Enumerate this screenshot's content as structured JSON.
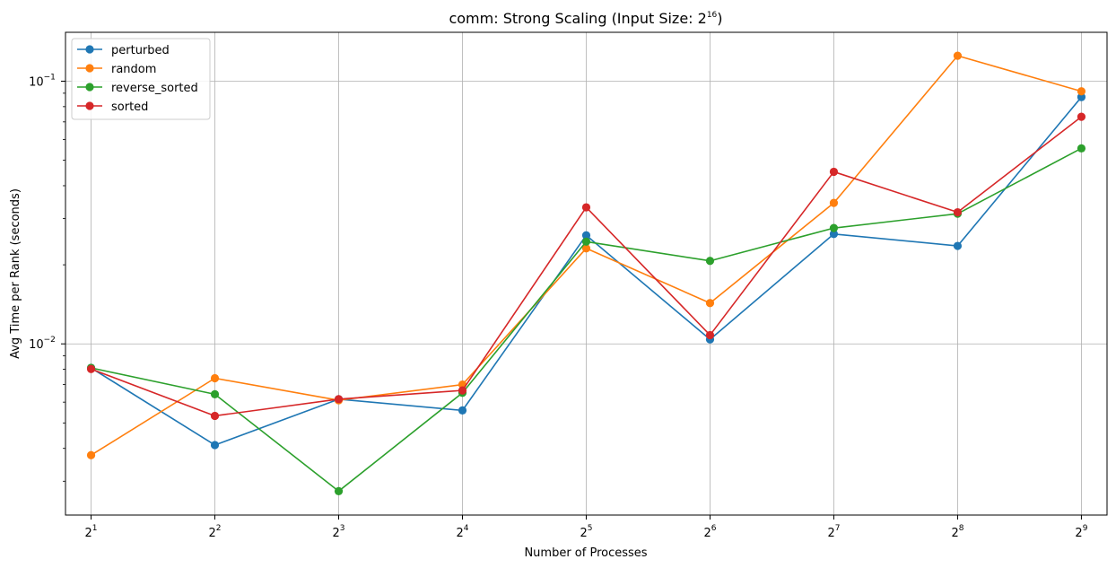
{
  "chart_data": {
    "type": "line",
    "title": "comm: Strong Scaling (Input Size: 2",
    "title_exp": "16",
    "title_suffix": ")",
    "xlabel": "Number of Processes",
    "ylabel": "Avg Time per Rank (seconds)",
    "x_scale": "log2",
    "y_scale": "log10",
    "x": [
      2,
      4,
      8,
      16,
      32,
      64,
      128,
      256,
      512
    ],
    "x_tick_labels": [
      {
        "base": "2",
        "exp": "1"
      },
      {
        "base": "2",
        "exp": "2"
      },
      {
        "base": "2",
        "exp": "3"
      },
      {
        "base": "2",
        "exp": "4"
      },
      {
        "base": "2",
        "exp": "5"
      },
      {
        "base": "2",
        "exp": "6"
      },
      {
        "base": "2",
        "exp": "7"
      },
      {
        "base": "2",
        "exp": "8"
      },
      {
        "base": "2",
        "exp": "9"
      }
    ],
    "y_ticks": [
      {
        "value": 0.01,
        "base": "10",
        "exp": "−2"
      },
      {
        "value": 0.1,
        "base": "10",
        "exp": "−1"
      }
    ],
    "xlim": [
      1.733,
      591.0
    ],
    "ylim": [
      0.00223,
      0.1535
    ],
    "grid": true,
    "legend_position": "upper-left",
    "series": [
      {
        "name": "perturbed",
        "color": "#1f77b4",
        "values": [
          0.0081,
          0.00412,
          0.00616,
          0.00558,
          0.0259,
          0.0104,
          0.0262,
          0.0236,
          0.087
        ]
      },
      {
        "name": "random",
        "color": "#ff7f0e",
        "values": [
          0.00377,
          0.0074,
          0.0061,
          0.007,
          0.0231,
          0.0143,
          0.0344,
          0.125,
          0.0915
        ]
      },
      {
        "name": "reverse_sorted",
        "color": "#2ca02c",
        "values": [
          0.0081,
          0.00643,
          0.00275,
          0.00651,
          0.0245,
          0.0207,
          0.0276,
          0.0313,
          0.0555
        ]
      },
      {
        "name": "sorted",
        "color": "#d62728",
        "values": [
          0.00802,
          0.00532,
          0.00616,
          0.00665,
          0.0331,
          0.0108,
          0.0452,
          0.0317,
          0.0732
        ]
      }
    ]
  }
}
